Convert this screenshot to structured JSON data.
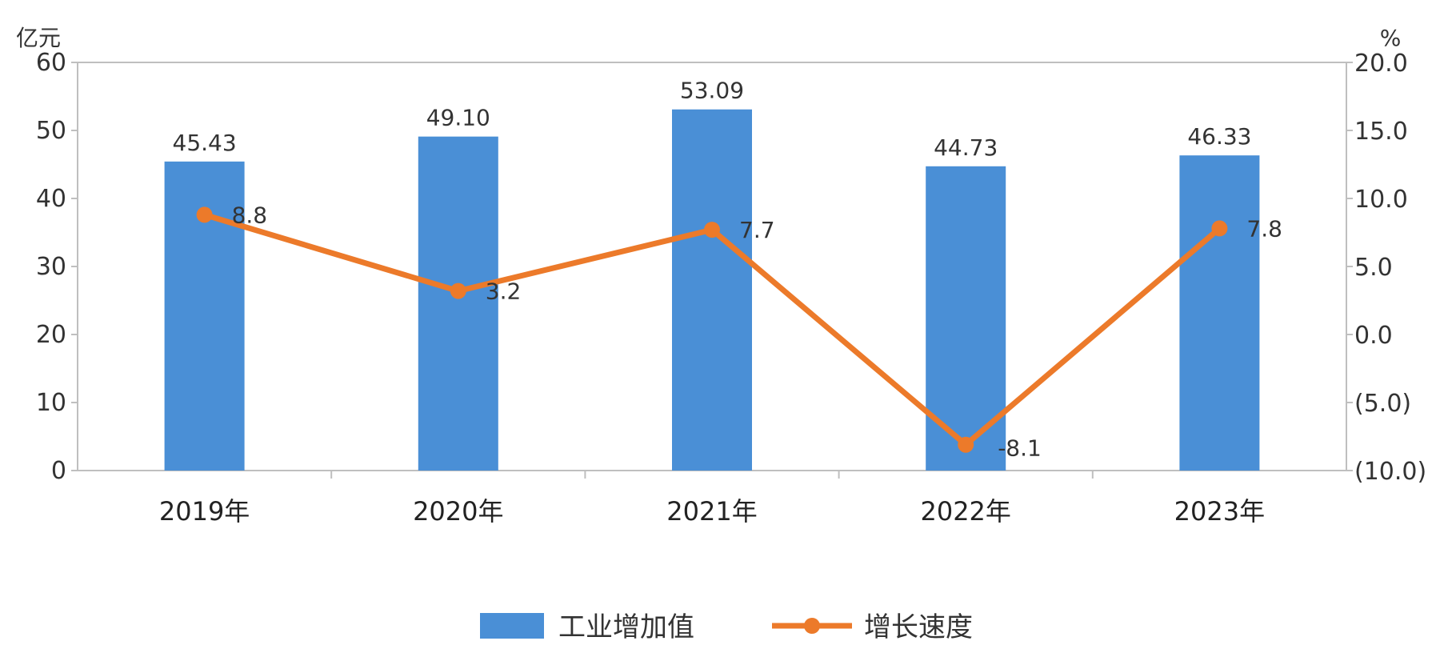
{
  "colors": {
    "bar": "#4a8fd6",
    "line": "#ec7a2a",
    "negative": "#e8262a",
    "axis": "#bfbfbf",
    "text": "#333333"
  },
  "chart_data": {
    "type": "bar",
    "title": "",
    "left_unit": "亿元",
    "right_unit": "%",
    "categories": [
      "2019年",
      "2020年",
      "2021年",
      "2022年",
      "2023年"
    ],
    "y_left": {
      "min": 0,
      "max": 60,
      "ticks": [
        "0",
        "10",
        "20",
        "30",
        "40",
        "50",
        "60"
      ]
    },
    "y_right": {
      "min": -10,
      "max": 20,
      "ticks": [
        "(10.0)",
        "(5.0)",
        "0.0",
        "5.0",
        "10.0",
        "15.0",
        "20.0"
      ]
    },
    "series": [
      {
        "name": "工业增加值",
        "type": "bar",
        "axis": "left",
        "values": [
          45.43,
          49.1,
          53.09,
          44.73,
          46.33
        ],
        "labels": [
          "45.43",
          "49.10",
          "53.09",
          "44.73",
          "46.33"
        ]
      },
      {
        "name": "增长速度",
        "type": "line",
        "axis": "right",
        "values": [
          8.8,
          3.2,
          7.7,
          -8.1,
          7.8
        ],
        "labels": [
          "8.8",
          "3.2",
          "7.7",
          "-8.1",
          "7.8"
        ]
      }
    ],
    "legend_position": "bottom",
    "grid": false
  }
}
